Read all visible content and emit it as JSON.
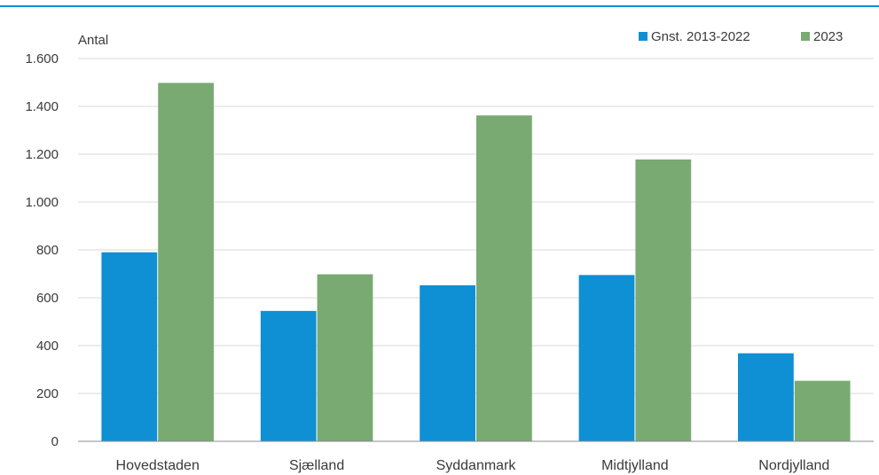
{
  "chart_data": {
    "type": "bar",
    "ylabel": "Antal",
    "ylim": [
      0,
      1600
    ],
    "yticks": [
      0,
      200,
      400,
      600,
      800,
      1000,
      1200,
      1400,
      1600
    ],
    "ytick_labels": [
      "0",
      "200",
      "400",
      "600",
      "800",
      "1.000",
      "1.200",
      "1.400",
      "1.600"
    ],
    "categories": [
      "Hovedstaden",
      "Sjælland",
      "Syddanmark",
      "Midtjylland",
      "Nordjylland"
    ],
    "series": [
      {
        "name": "Gnst. 2013-2022",
        "color": "#0f8fd4",
        "values": [
          790,
          545,
          652,
          695,
          368
        ]
      },
      {
        "name": "2023",
        "color": "#79aa72",
        "values": [
          1498,
          698,
          1362,
          1178,
          253
        ]
      }
    ],
    "grid": true,
    "legend": "top-right",
    "colors": {
      "top_rule": "#0f8fd4",
      "grid": "#d9d9d9",
      "axis": "#8c8c8c"
    }
  }
}
